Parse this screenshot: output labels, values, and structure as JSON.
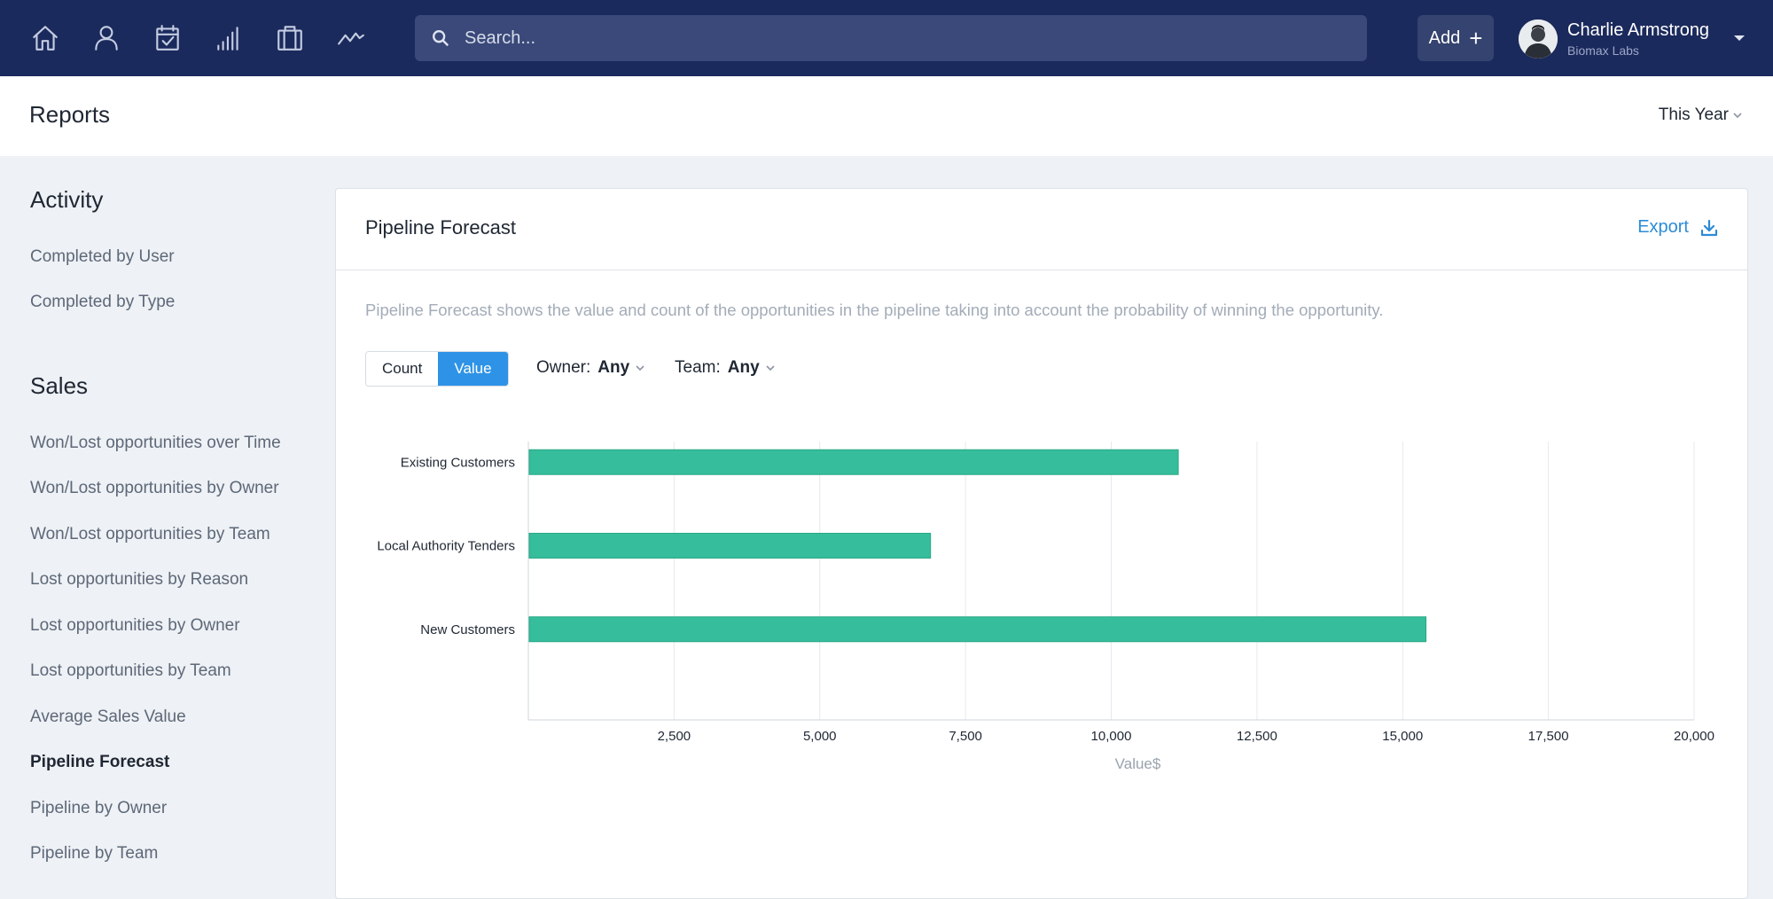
{
  "nav": {
    "icons": [
      "home-icon",
      "user-icon",
      "calendar-icon",
      "signal-bars-icon",
      "briefcase-icon",
      "activity-icon"
    ],
    "search_placeholder": "Search...",
    "add_label": "Add",
    "user": {
      "name": "Charlie Armstrong",
      "org": "Biomax Labs"
    }
  },
  "page": {
    "title": "Reports",
    "period": "This Year"
  },
  "sidebar": {
    "sections": [
      {
        "heading": "Activity",
        "items": [
          "Completed by User",
          "Completed by Type"
        ]
      },
      {
        "heading": "Sales",
        "items": [
          "Won/Lost opportunities over Time",
          "Won/Lost opportunities by Owner",
          "Won/Lost opportunities by Team",
          "Lost opportunities by Reason",
          "Lost opportunities by Owner",
          "Lost opportunities by Team",
          "Average Sales Value",
          "Pipeline Forecast",
          "Pipeline by Owner",
          "Pipeline by Team"
        ]
      }
    ],
    "active_item": "Pipeline Forecast"
  },
  "report": {
    "title": "Pipeline Forecast",
    "export_label": "Export",
    "description": "Pipeline Forecast shows the value and count of the opportunities in the pipeline taking into account the probability of winning the opportunity.",
    "toggle": {
      "count_label": "Count",
      "value_label": "Value",
      "selected": "Value"
    },
    "filters": {
      "owner_label": "Owner:",
      "owner_value": "Any",
      "team_label": "Team:",
      "team_value": "Any"
    }
  },
  "colors": {
    "nav_bg": "#1b2a5c",
    "accent": "#2e93e6",
    "bar": "#36bd9b"
  },
  "chart_data": {
    "type": "bar",
    "orientation": "horizontal",
    "categories": [
      "Existing Customers",
      "Local Authority Tenders",
      "New Customers"
    ],
    "values": [
      11150,
      6900,
      15400
    ],
    "xlabel": "Value$",
    "xlim": [
      0,
      20000
    ],
    "xticks": [
      2500,
      5000,
      7500,
      10000,
      12500,
      15000,
      17500,
      20000
    ],
    "xtick_labels": [
      "2,500",
      "5,000",
      "7,500",
      "10,000",
      "12,500",
      "15,000",
      "17,500",
      "20,000"
    ],
    "grid": "vertical"
  }
}
